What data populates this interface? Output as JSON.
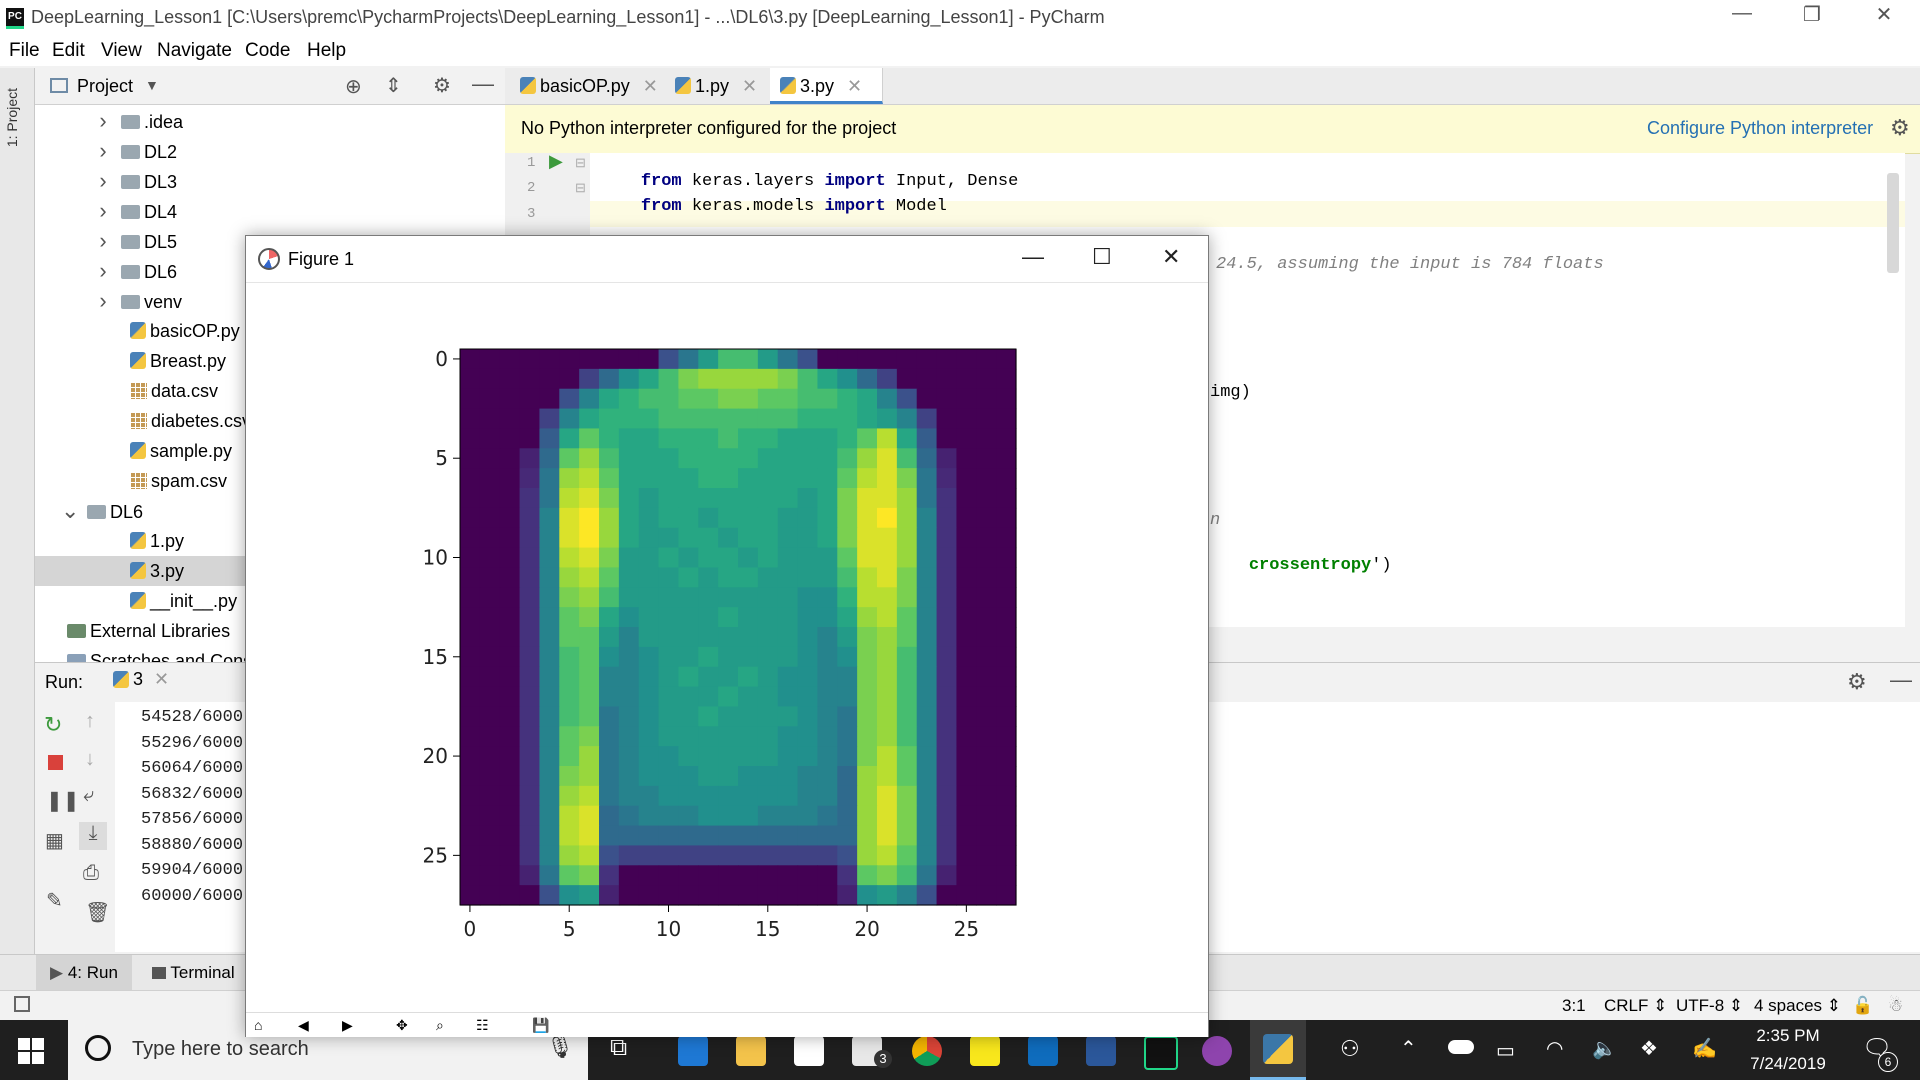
{
  "window": {
    "title": "DeepLearning_Lesson1 [C:\\Users\\premc\\PycharmProjects\\DeepLearning_Lesson1] - ...\\DL6\\3.py [DeepLearning_Lesson1] - PyCharm",
    "minimize": "—",
    "restore": "❐",
    "close": "✕"
  },
  "menu": [
    "File",
    "Edit",
    "View",
    "Navigate",
    "Code",
    "Help"
  ],
  "left_strip": {
    "label": "1: Project"
  },
  "project_panel": {
    "title": "Project",
    "tree": [
      {
        "label": ".idea",
        "kind": "folder",
        "indent": 1,
        "arrow": "›"
      },
      {
        "label": "DL2",
        "kind": "folder",
        "indent": 1,
        "arrow": "›"
      },
      {
        "label": "DL3",
        "kind": "folder",
        "indent": 1,
        "arrow": "›"
      },
      {
        "label": "DL4",
        "kind": "folder",
        "indent": 1,
        "arrow": "›"
      },
      {
        "label": "DL5",
        "kind": "folder",
        "indent": 1,
        "arrow": "›"
      },
      {
        "label": "DL6",
        "kind": "folder",
        "indent": 1,
        "arrow": "›"
      },
      {
        "label": "venv",
        "kind": "folder",
        "indent": 1,
        "arrow": "›"
      },
      {
        "label": "basicOP.py",
        "kind": "py",
        "indent": 2
      },
      {
        "label": "Breast.py",
        "kind": "py",
        "indent": 2
      },
      {
        "label": "data.csv",
        "kind": "csv",
        "indent": 2
      },
      {
        "label": "diabetes.csv",
        "kind": "csv",
        "indent": 2
      },
      {
        "label": "sample.py",
        "kind": "py",
        "indent": 2
      },
      {
        "label": "spam.csv",
        "kind": "csv",
        "indent": 2
      },
      {
        "label": "DL6",
        "kind": "folder",
        "indent": 0,
        "arrow": "⌄"
      },
      {
        "label": "1.py",
        "kind": "py",
        "indent": 2
      },
      {
        "label": "3.py",
        "kind": "py",
        "indent": 2,
        "selected": true
      },
      {
        "label": "__init__.py",
        "kind": "py",
        "indent": 2
      },
      {
        "label": "External Libraries",
        "kind": "lib",
        "indent": -1
      },
      {
        "label": "Scratches and Consoles",
        "kind": "scratch",
        "indent": -1
      }
    ]
  },
  "editor": {
    "tabs": [
      {
        "label": "basicOP.py",
        "active": false
      },
      {
        "label": "1.py",
        "active": false
      },
      {
        "label": "3.py",
        "active": true
      }
    ],
    "banner_text": "No Python interpreter configured for the project",
    "banner_link": "Configure Python interpreter",
    "line_numbers": [
      "1",
      "2",
      "3"
    ],
    "code": [
      {
        "kw1": "from",
        "mod": " keras.layers ",
        "kw2": "import",
        "rest": " Input, Dense"
      },
      {
        "kw1": "from",
        "mod": " keras.models ",
        "kw2": "import",
        "rest": " Model"
      }
    ],
    "visible_fragments": {
      "comment": "24.5, assuming the input is 784 floats",
      "img": "img)",
      "n": "n",
      "crossentropy": "crossentropy",
      "crossentropy_tail": "')"
    }
  },
  "run_panel": {
    "label": "Run:",
    "tab": "3",
    "output": [
      "54528/6000",
      "55296/6000",
      "56064/6000",
      "56832/6000",
      "57856/6000",
      "58880/6000",
      "59904/6000",
      "60000/6000"
    ]
  },
  "bottom_tabs": [
    {
      "label": "4: Run",
      "underline": "4"
    },
    {
      "label": "Terminal"
    }
  ],
  "status": {
    "position": "3:1",
    "line_sep": "CRLF",
    "encoding": "UTF-8",
    "indent": "4 spaces"
  },
  "taskbar": {
    "search_placeholder": "Type here to search",
    "time": "2:35 PM",
    "date": "7/24/2019",
    "notif_count": "6",
    "mail_badge": "3"
  },
  "figure": {
    "title": "Figure 1",
    "y_ticks": [
      "0",
      "5",
      "10",
      "15",
      "20",
      "25"
    ],
    "x_ticks": [
      "0",
      "5",
      "10",
      "15",
      "20",
      "25"
    ]
  },
  "chart_data": {
    "type": "heatmap",
    "title": "",
    "colormap": "viridis",
    "x_ticks": [
      0,
      5,
      10,
      15,
      20,
      25
    ],
    "y_ticks": [
      0,
      5,
      10,
      15,
      20,
      25
    ],
    "size": [
      28,
      28
    ],
    "description_rows": "28x28 image of a long-sleeve shirt (Fashion-MNIST style)",
    "values": [
      [
        0,
        0,
        0,
        0,
        0,
        0,
        0,
        0,
        0,
        0,
        0.25,
        0.4,
        0.55,
        0.7,
        0.7,
        0.55,
        0.4,
        0.25,
        0,
        0,
        0,
        0,
        0,
        0,
        0,
        0,
        0,
        0
      ],
      [
        0,
        0,
        0,
        0,
        0,
        0,
        0.2,
        0.35,
        0.5,
        0.6,
        0.7,
        0.8,
        0.85,
        0.85,
        0.85,
        0.85,
        0.8,
        0.7,
        0.6,
        0.5,
        0.35,
        0.2,
        0,
        0,
        0,
        0,
        0,
        0
      ],
      [
        0,
        0,
        0,
        0,
        0,
        0.25,
        0.45,
        0.6,
        0.65,
        0.7,
        0.7,
        0.75,
        0.75,
        0.8,
        0.8,
        0.75,
        0.75,
        0.7,
        0.7,
        0.65,
        0.6,
        0.45,
        0.25,
        0,
        0,
        0,
        0,
        0
      ],
      [
        0,
        0,
        0,
        0,
        0.2,
        0.45,
        0.6,
        0.65,
        0.65,
        0.65,
        0.7,
        0.7,
        0.7,
        0.7,
        0.7,
        0.7,
        0.7,
        0.65,
        0.65,
        0.65,
        0.6,
        0.55,
        0.45,
        0.2,
        0,
        0,
        0,
        0
      ],
      [
        0,
        0,
        0,
        0,
        0.3,
        0.6,
        0.75,
        0.65,
        0.6,
        0.6,
        0.65,
        0.65,
        0.65,
        0.7,
        0.65,
        0.65,
        0.6,
        0.6,
        0.6,
        0.65,
        0.75,
        0.9,
        0.6,
        0.3,
        0,
        0,
        0,
        0
      ],
      [
        0,
        0,
        0,
        0.1,
        0.35,
        0.75,
        0.85,
        0.7,
        0.6,
        0.6,
        0.6,
        0.65,
        0.65,
        0.65,
        0.65,
        0.6,
        0.6,
        0.6,
        0.6,
        0.7,
        0.85,
        0.95,
        0.7,
        0.35,
        0.1,
        0,
        0,
        0
      ],
      [
        0,
        0,
        0,
        0.12,
        0.4,
        0.85,
        0.9,
        0.75,
        0.6,
        0.6,
        0.6,
        0.6,
        0.65,
        0.65,
        0.6,
        0.6,
        0.6,
        0.6,
        0.6,
        0.75,
        0.9,
        0.95,
        0.8,
        0.4,
        0.12,
        0,
        0,
        0
      ],
      [
        0,
        0,
        0,
        0.15,
        0.4,
        0.9,
        0.95,
        0.8,
        0.6,
        0.55,
        0.6,
        0.6,
        0.6,
        0.6,
        0.6,
        0.6,
        0.6,
        0.55,
        0.6,
        0.8,
        0.95,
        0.95,
        0.85,
        0.4,
        0.15,
        0,
        0,
        0
      ],
      [
        0,
        0,
        0,
        0.15,
        0.45,
        0.95,
        1.0,
        0.85,
        0.6,
        0.55,
        0.6,
        0.6,
        0.55,
        0.6,
        0.6,
        0.6,
        0.55,
        0.55,
        0.6,
        0.8,
        0.95,
        1.0,
        0.85,
        0.45,
        0.15,
        0,
        0,
        0
      ],
      [
        0,
        0,
        0,
        0.15,
        0.45,
        0.95,
        1.0,
        0.85,
        0.6,
        0.55,
        0.55,
        0.6,
        0.6,
        0.55,
        0.6,
        0.6,
        0.55,
        0.55,
        0.6,
        0.8,
        0.95,
        0.95,
        0.85,
        0.45,
        0.15,
        0,
        0,
        0
      ],
      [
        0,
        0,
        0,
        0.15,
        0.45,
        0.9,
        0.95,
        0.8,
        0.55,
        0.55,
        0.6,
        0.55,
        0.6,
        0.6,
        0.55,
        0.6,
        0.55,
        0.55,
        0.55,
        0.75,
        0.95,
        0.95,
        0.85,
        0.45,
        0.15,
        0,
        0,
        0
      ],
      [
        0,
        0,
        0,
        0.15,
        0.45,
        0.85,
        0.9,
        0.75,
        0.55,
        0.55,
        0.55,
        0.6,
        0.55,
        0.6,
        0.6,
        0.55,
        0.55,
        0.55,
        0.55,
        0.7,
        0.9,
        0.95,
        0.8,
        0.45,
        0.15,
        0,
        0,
        0
      ],
      [
        0,
        0,
        0,
        0.15,
        0.45,
        0.8,
        0.85,
        0.7,
        0.55,
        0.55,
        0.55,
        0.55,
        0.55,
        0.55,
        0.55,
        0.55,
        0.55,
        0.5,
        0.5,
        0.65,
        0.9,
        0.9,
        0.8,
        0.45,
        0.15,
        0,
        0,
        0
      ],
      [
        0,
        0,
        0,
        0.15,
        0.45,
        0.75,
        0.8,
        0.6,
        0.5,
        0.55,
        0.55,
        0.55,
        0.55,
        0.6,
        0.55,
        0.55,
        0.55,
        0.5,
        0.5,
        0.6,
        0.85,
        0.9,
        0.75,
        0.45,
        0.15,
        0,
        0,
        0
      ],
      [
        0,
        0,
        0,
        0.15,
        0.45,
        0.75,
        0.75,
        0.55,
        0.45,
        0.55,
        0.55,
        0.55,
        0.55,
        0.55,
        0.55,
        0.55,
        0.55,
        0.5,
        0.45,
        0.55,
        0.8,
        0.85,
        0.75,
        0.45,
        0.15,
        0,
        0,
        0
      ],
      [
        0,
        0,
        0,
        0.15,
        0.45,
        0.7,
        0.75,
        0.5,
        0.45,
        0.5,
        0.55,
        0.55,
        0.6,
        0.55,
        0.55,
        0.55,
        0.55,
        0.5,
        0.45,
        0.5,
        0.8,
        0.85,
        0.7,
        0.45,
        0.15,
        0,
        0,
        0
      ],
      [
        0,
        0,
        0,
        0.15,
        0.45,
        0.7,
        0.75,
        0.45,
        0.45,
        0.5,
        0.55,
        0.6,
        0.55,
        0.55,
        0.6,
        0.55,
        0.5,
        0.5,
        0.45,
        0.45,
        0.8,
        0.85,
        0.7,
        0.45,
        0.15,
        0,
        0,
        0
      ],
      [
        0,
        0,
        0,
        0.15,
        0.45,
        0.7,
        0.75,
        0.45,
        0.45,
        0.5,
        0.55,
        0.55,
        0.55,
        0.6,
        0.55,
        0.55,
        0.5,
        0.5,
        0.45,
        0.45,
        0.8,
        0.85,
        0.7,
        0.45,
        0.15,
        0,
        0,
        0
      ],
      [
        0,
        0,
        0,
        0.15,
        0.45,
        0.7,
        0.75,
        0.4,
        0.45,
        0.5,
        0.55,
        0.55,
        0.6,
        0.55,
        0.55,
        0.55,
        0.55,
        0.5,
        0.45,
        0.4,
        0.8,
        0.85,
        0.7,
        0.45,
        0.15,
        0,
        0,
        0
      ],
      [
        0,
        0,
        0,
        0.15,
        0.45,
        0.75,
        0.8,
        0.4,
        0.45,
        0.5,
        0.55,
        0.55,
        0.55,
        0.55,
        0.55,
        0.55,
        0.5,
        0.5,
        0.45,
        0.4,
        0.8,
        0.85,
        0.7,
        0.45,
        0.15,
        0,
        0,
        0
      ],
      [
        0,
        0,
        0,
        0.15,
        0.45,
        0.75,
        0.85,
        0.4,
        0.45,
        0.5,
        0.5,
        0.55,
        0.55,
        0.55,
        0.55,
        0.55,
        0.5,
        0.5,
        0.45,
        0.4,
        0.8,
        0.9,
        0.75,
        0.45,
        0.15,
        0,
        0,
        0
      ],
      [
        0,
        0,
        0,
        0.15,
        0.45,
        0.8,
        0.85,
        0.4,
        0.45,
        0.5,
        0.5,
        0.5,
        0.55,
        0.55,
        0.5,
        0.5,
        0.5,
        0.45,
        0.45,
        0.35,
        0.85,
        0.9,
        0.75,
        0.45,
        0.15,
        0,
        0,
        0
      ],
      [
        0,
        0,
        0,
        0.15,
        0.45,
        0.85,
        0.9,
        0.4,
        0.45,
        0.45,
        0.5,
        0.5,
        0.5,
        0.5,
        0.5,
        0.5,
        0.5,
        0.45,
        0.45,
        0.35,
        0.85,
        0.95,
        0.8,
        0.45,
        0.15,
        0,
        0,
        0
      ],
      [
        0,
        0,
        0,
        0.15,
        0.45,
        0.9,
        0.95,
        0.35,
        0.4,
        0.45,
        0.45,
        0.45,
        0.5,
        0.5,
        0.5,
        0.45,
        0.45,
        0.45,
        0.4,
        0.35,
        0.85,
        0.95,
        0.8,
        0.45,
        0.15,
        0,
        0,
        0
      ],
      [
        0,
        0,
        0,
        0.15,
        0.45,
        0.9,
        0.95,
        0.35,
        0.35,
        0.35,
        0.35,
        0.35,
        0.35,
        0.35,
        0.35,
        0.35,
        0.35,
        0.35,
        0.35,
        0.35,
        0.85,
        0.95,
        0.8,
        0.45,
        0.15,
        0,
        0,
        0
      ],
      [
        0,
        0,
        0,
        0.15,
        0.45,
        0.85,
        0.9,
        0.25,
        0.2,
        0.2,
        0.2,
        0.2,
        0.2,
        0.2,
        0.2,
        0.2,
        0.2,
        0.2,
        0.2,
        0.25,
        0.85,
        0.9,
        0.75,
        0.45,
        0.15,
        0,
        0,
        0
      ],
      [
        0,
        0,
        0,
        0.1,
        0.4,
        0.75,
        0.8,
        0.15,
        0,
        0,
        0,
        0,
        0,
        0,
        0,
        0,
        0,
        0,
        0,
        0.15,
        0.75,
        0.8,
        0.7,
        0.4,
        0.1,
        0,
        0,
        0
      ],
      [
        0,
        0,
        0,
        0,
        0.25,
        0.5,
        0.55,
        0.1,
        0,
        0,
        0,
        0,
        0,
        0,
        0,
        0,
        0,
        0,
        0,
        0.1,
        0.5,
        0.55,
        0.45,
        0.25,
        0,
        0,
        0,
        0
      ]
    ]
  }
}
